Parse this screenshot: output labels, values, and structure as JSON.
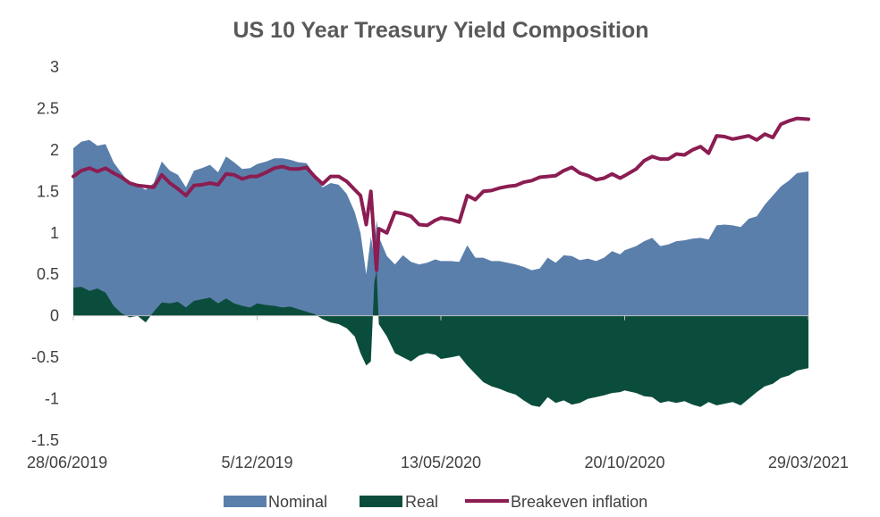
{
  "colors": {
    "nominal": "#5b7fab",
    "real": "#0a4d3c",
    "breakeven": "#8b1d52",
    "axis": "#bfbfbf",
    "text": "#404040",
    "title": "#595959"
  },
  "chart_data": {
    "type": "area",
    "title": "US 10 Year Treasury Yield Composition",
    "xlabel": "",
    "ylabel": "",
    "ylim": [
      -1.5,
      3
    ],
    "yticks": [
      3,
      2.5,
      2,
      1.5,
      1,
      0.5,
      0,
      -0.5,
      -1,
      -1.5
    ],
    "ytick_labels": [
      "3",
      "2.5",
      "2",
      "1.5",
      "1",
      "0.5",
      "0",
      "-0.5",
      "-1",
      "-1.5"
    ],
    "xlim": [
      "2019-06-28",
      "2021-03-29"
    ],
    "xtick_labels": [
      "28/06/2019",
      "5/12/2019",
      "13/05/2020",
      "20/10/2020",
      "29/03/2021"
    ],
    "xtick_dates": [
      "2019-06-28",
      "2019-12-05",
      "2020-05-13",
      "2020-10-20",
      "2021-03-29"
    ],
    "grid": false,
    "legend_position": "bottom",
    "legend": [
      "Nominal",
      "Real",
      "Breakeven inflation"
    ],
    "dates": [
      "2019-06-28",
      "2019-07-05",
      "2019-07-12",
      "2019-07-19",
      "2019-07-26",
      "2019-08-02",
      "2019-08-09",
      "2019-08-16",
      "2019-08-23",
      "2019-08-30",
      "2019-09-06",
      "2019-09-13",
      "2019-09-20",
      "2019-09-27",
      "2019-10-04",
      "2019-10-11",
      "2019-10-18",
      "2019-10-25",
      "2019-11-01",
      "2019-11-08",
      "2019-11-15",
      "2019-11-22",
      "2019-11-29",
      "2019-12-05",
      "2019-12-13",
      "2019-12-20",
      "2019-12-27",
      "2020-01-03",
      "2020-01-10",
      "2020-01-17",
      "2020-01-24",
      "2020-01-31",
      "2020-02-07",
      "2020-02-14",
      "2020-02-21",
      "2020-02-28",
      "2020-03-04",
      "2020-03-09",
      "2020-03-13",
      "2020-03-16",
      "2020-03-18",
      "2020-03-20",
      "2020-03-27",
      "2020-04-03",
      "2020-04-10",
      "2020-04-17",
      "2020-04-24",
      "2020-05-01",
      "2020-05-08",
      "2020-05-13",
      "2020-05-22",
      "2020-05-29",
      "2020-06-05",
      "2020-06-12",
      "2020-06-19",
      "2020-06-26",
      "2020-07-03",
      "2020-07-10",
      "2020-07-17",
      "2020-07-24",
      "2020-07-31",
      "2020-08-07",
      "2020-08-14",
      "2020-08-21",
      "2020-08-28",
      "2020-09-04",
      "2020-09-11",
      "2020-09-18",
      "2020-09-25",
      "2020-10-02",
      "2020-10-09",
      "2020-10-16",
      "2020-10-20",
      "2020-10-30",
      "2020-11-06",
      "2020-11-13",
      "2020-11-20",
      "2020-11-27",
      "2020-12-04",
      "2020-12-11",
      "2020-12-18",
      "2020-12-25",
      "2021-01-01",
      "2021-01-08",
      "2021-01-15",
      "2021-01-22",
      "2021-01-29",
      "2021-02-05",
      "2021-02-12",
      "2021-02-19",
      "2021-02-26",
      "2021-03-05",
      "2021-03-12",
      "2021-03-19",
      "2021-03-29"
    ],
    "series": [
      {
        "name": "Nominal",
        "values": [
          2.02,
          2.1,
          2.12,
          2.05,
          2.07,
          1.85,
          1.72,
          1.6,
          1.57,
          1.52,
          1.6,
          1.86,
          1.75,
          1.7,
          1.55,
          1.75,
          1.78,
          1.82,
          1.73,
          1.92,
          1.85,
          1.77,
          1.78,
          1.83,
          1.86,
          1.9,
          1.9,
          1.88,
          1.85,
          1.84,
          1.7,
          1.55,
          1.6,
          1.58,
          1.47,
          1.25,
          1.0,
          0.5,
          0.95,
          0.72,
          1.15,
          0.95,
          0.72,
          0.62,
          0.73,
          0.65,
          0.62,
          0.64,
          0.68,
          0.66,
          0.66,
          0.65,
          0.85,
          0.7,
          0.7,
          0.66,
          0.66,
          0.64,
          0.62,
          0.59,
          0.55,
          0.57,
          0.7,
          0.64,
          0.73,
          0.72,
          0.67,
          0.69,
          0.66,
          0.7,
          0.78,
          0.74,
          0.79,
          0.84,
          0.9,
          0.94,
          0.84,
          0.86,
          0.9,
          0.91,
          0.93,
          0.94,
          0.92,
          1.09,
          1.1,
          1.09,
          1.07,
          1.17,
          1.2,
          1.34,
          1.45,
          1.56,
          1.63,
          1.72,
          1.74
        ]
      },
      {
        "name": "Real",
        "values": [
          0.34,
          0.35,
          0.3,
          0.33,
          0.28,
          0.12,
          0.03,
          -0.02,
          0.0,
          -0.08,
          0.05,
          0.16,
          0.15,
          0.17,
          0.1,
          0.18,
          0.2,
          0.22,
          0.15,
          0.21,
          0.15,
          0.12,
          0.1,
          0.15,
          0.13,
          0.12,
          0.1,
          0.11,
          0.08,
          0.05,
          0.02,
          -0.04,
          -0.08,
          -0.1,
          -0.15,
          -0.25,
          -0.45,
          -0.6,
          -0.55,
          0.4,
          0.55,
          -0.1,
          -0.25,
          -0.45,
          -0.5,
          -0.55,
          -0.48,
          -0.45,
          -0.47,
          -0.52,
          -0.5,
          -0.48,
          -0.6,
          -0.7,
          -0.8,
          -0.85,
          -0.88,
          -0.92,
          -0.95,
          -1.02,
          -1.08,
          -1.1,
          -0.98,
          -1.05,
          -1.02,
          -1.07,
          -1.05,
          -1.0,
          -0.98,
          -0.96,
          -0.93,
          -0.92,
          -0.9,
          -0.93,
          -0.97,
          -0.98,
          -1.05,
          -1.03,
          -1.05,
          -1.03,
          -1.07,
          -1.1,
          -1.04,
          -1.08,
          -1.06,
          -1.04,
          -1.08,
          -1.0,
          -0.92,
          -0.85,
          -0.82,
          -0.75,
          -0.72,
          -0.66,
          -0.63
        ]
      },
      {
        "name": "Breakeven inflation",
        "values": [
          1.68,
          1.75,
          1.78,
          1.74,
          1.78,
          1.72,
          1.67,
          1.6,
          1.57,
          1.56,
          1.55,
          1.7,
          1.6,
          1.53,
          1.45,
          1.57,
          1.58,
          1.6,
          1.58,
          1.71,
          1.7,
          1.65,
          1.68,
          1.68,
          1.73,
          1.78,
          1.8,
          1.77,
          1.77,
          1.79,
          1.68,
          1.59,
          1.68,
          1.68,
          1.62,
          1.52,
          1.45,
          1.1,
          1.5,
          0.9,
          0.55,
          1.05,
          1.0,
          1.25,
          1.23,
          1.2,
          1.1,
          1.09,
          1.15,
          1.18,
          1.16,
          1.13,
          1.45,
          1.4,
          1.5,
          1.51,
          1.54,
          1.56,
          1.57,
          1.61,
          1.63,
          1.67,
          1.68,
          1.69,
          1.75,
          1.79,
          1.72,
          1.69,
          1.64,
          1.66,
          1.71,
          1.66,
          1.69,
          1.77,
          1.87,
          1.92,
          1.89,
          1.89,
          1.95,
          1.94,
          2.0,
          2.04,
          1.96,
          2.17,
          2.16,
          2.13,
          2.15,
          2.17,
          2.12,
          2.19,
          2.15,
          2.31,
          2.35,
          2.38,
          2.37
        ]
      }
    ]
  }
}
